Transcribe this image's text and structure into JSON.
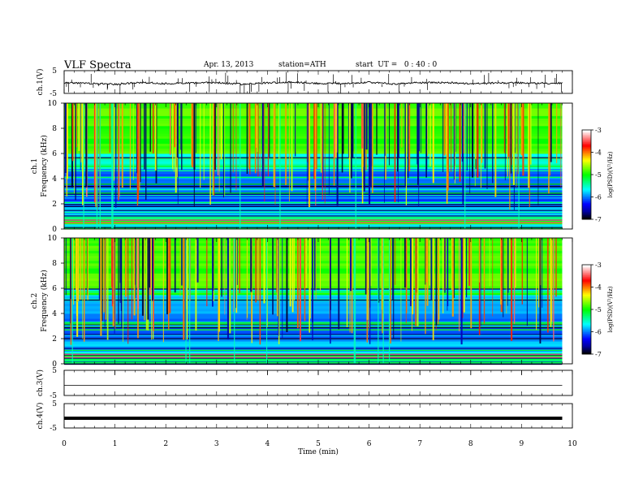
{
  "header": {
    "title": "VLF Spectra",
    "date": "Apr. 13, 2013",
    "station": "station=ATH",
    "start": "start  UT =   0 : 40 : 0"
  },
  "colors": {
    "background": "#ffffff",
    "trace": "#000000",
    "colormap": [
      "#000000",
      "#0000a0",
      "#0000ff",
      "#0080ff",
      "#00ffff",
      "#00ff80",
      "#00ff00",
      "#80ff00",
      "#ffff00",
      "#ff8000",
      "#ff0000",
      "#ff8080",
      "#ffffff"
    ]
  },
  "chart_data": [
    {
      "type": "line",
      "id": "ch1",
      "ylabel": "ch.1(V)",
      "ylim": [
        -5,
        5
      ],
      "yticks": [
        "5",
        "-5"
      ],
      "xlim": [
        0,
        10
      ],
      "x_min": [
        0,
        0.5,
        1,
        1.5,
        2,
        2.5,
        3,
        3.5,
        4,
        4.5,
        5,
        5.5,
        6,
        6.5,
        7,
        7.5,
        8,
        8.5,
        9,
        9.5,
        9.8
      ],
      "values": [
        -0.3,
        -0.6,
        -1.0,
        -0.2,
        -0.7,
        -0.4,
        -0.3,
        -0.9,
        -0.3,
        0.0,
        -0.6,
        -0.7,
        -0.1,
        -0.9,
        -0.3,
        -0.2,
        -0.8,
        -0.4,
        -0.3,
        -0.6,
        -0.5
      ]
    },
    {
      "type": "heatmap",
      "id": "ch2spec",
      "title": "ch.1",
      "ylabel": "Frequency  (kHz)",
      "ylim": [
        0,
        10
      ],
      "yticks": [
        "0",
        "2",
        "4",
        "6",
        "8",
        "10"
      ],
      "xlim": [
        0,
        9.8
      ],
      "colorbar": {
        "label": "log(PSD)(V²/Hz)",
        "range": [
          -7,
          -3
        ],
        "ticks": [
          "-3",
          "-4",
          "-5",
          "-6",
          "-7"
        ]
      }
    },
    {
      "type": "heatmap",
      "id": "ch3spec",
      "title": "ch.2",
      "ylabel": "Frequency  (kHz)",
      "ylim": [
        0,
        10
      ],
      "yticks": [
        "0",
        "2",
        "4",
        "6",
        "8",
        "10"
      ],
      "xlim": [
        0,
        9.8
      ],
      "colorbar": {
        "label": "log(PSD)(V²/Hz)",
        "range": [
          -7,
          -3
        ],
        "ticks": [
          "-3",
          "-4",
          "-5",
          "-6",
          "-7"
        ]
      }
    },
    {
      "type": "line",
      "id": "ch3",
      "ylabel": "ch.3(V)",
      "ylim": [
        -5,
        5
      ],
      "yticks": [
        "5",
        "-5"
      ],
      "x_min": [
        0,
        9.8
      ],
      "values": [
        -1.0,
        -1.0
      ]
    },
    {
      "type": "line",
      "id": "ch4",
      "ylabel": "ch.4(V)",
      "ylim": [
        -5,
        5
      ],
      "yticks": [
        "5",
        "-5"
      ],
      "x_min": [
        0,
        9.8
      ],
      "values": [
        -1.0,
        -1.0
      ]
    }
  ],
  "xaxis": {
    "label": "Time  (min)",
    "range": [
      0,
      10
    ],
    "ticks": [
      "0",
      "1",
      "2",
      "3",
      "4",
      "5",
      "6",
      "7",
      "8",
      "9",
      "10"
    ]
  }
}
